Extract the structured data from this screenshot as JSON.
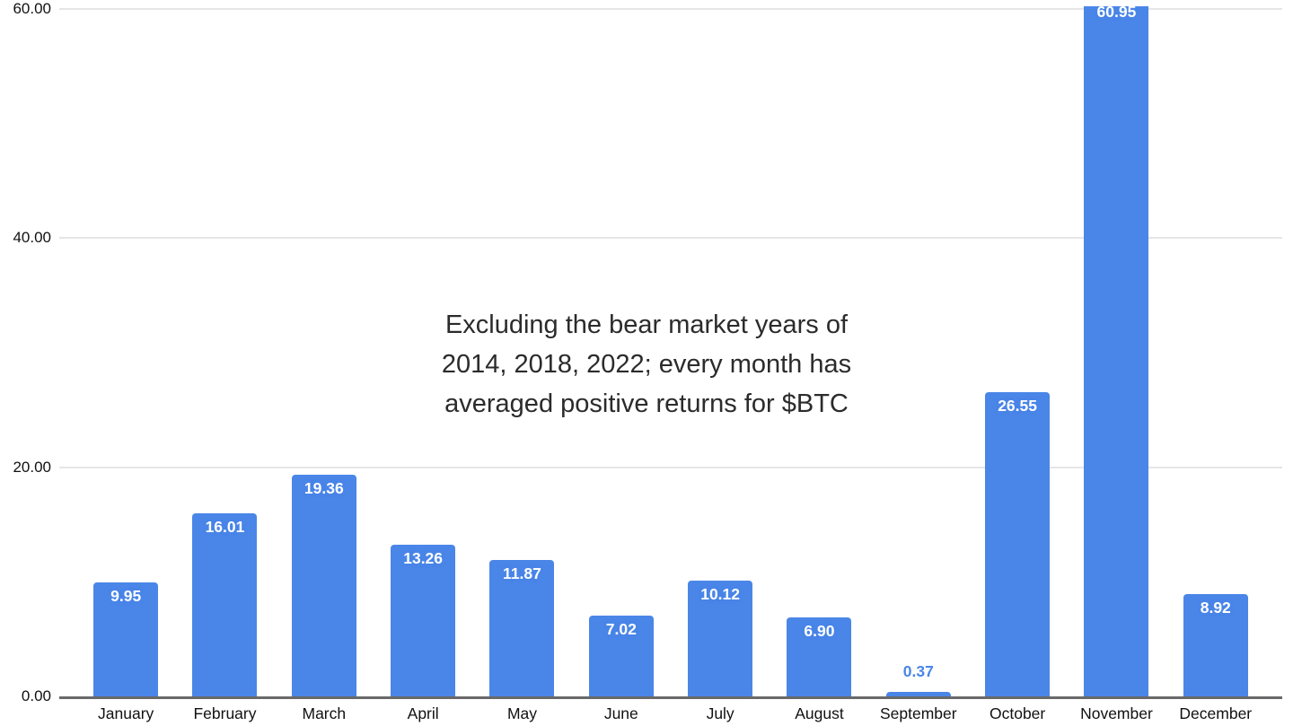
{
  "chart_data": {
    "type": "bar",
    "title": "",
    "xlabel": "",
    "ylabel": "",
    "categories": [
      "January",
      "February",
      "March",
      "April",
      "May",
      "June",
      "July",
      "August",
      "September",
      "October",
      "November",
      "December"
    ],
    "values": [
      9.95,
      16.01,
      19.36,
      13.26,
      11.87,
      7.02,
      10.12,
      6.9,
      0.37,
      26.55,
      60.95,
      8.92
    ],
    "value_labels": [
      "9.95",
      "16.01",
      "19.36",
      "13.26",
      "11.87",
      "7.02",
      "10.12",
      "6.90",
      "0.37",
      "26.55",
      "60.95",
      "8.92"
    ],
    "yticks": {
      "values": [
        0,
        20,
        40,
        60
      ],
      "labels": [
        "0.00",
        "20.00",
        "40.00",
        "60.00"
      ]
    },
    "ylim": [
      0,
      60
    ],
    "grid": true,
    "legend": "none",
    "bar_color": "#4a86e8",
    "gridline_color": "#e5e5e5",
    "baseline_color": "#696969",
    "label_color_inside": "#ffffff",
    "label_color_outside": "#4a86e8",
    "annotation": {
      "lines": [
        "Excluding the bear market years of",
        "2014, 2018, 2022; every month has",
        "averaged positive returns for $BTC"
      ]
    }
  }
}
